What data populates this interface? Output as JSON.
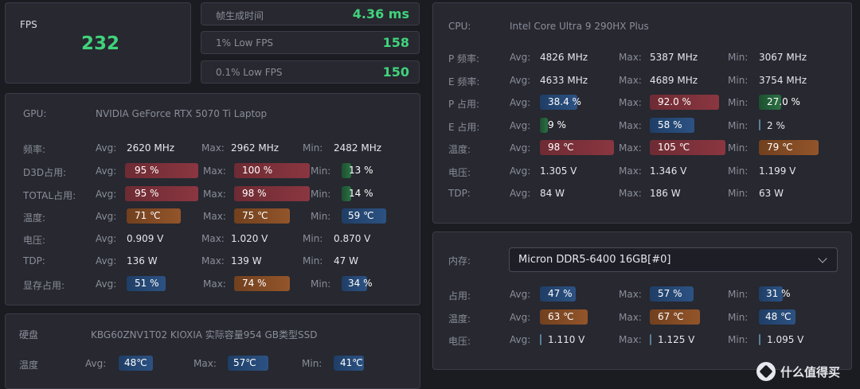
{
  "fps": {
    "label": "FPS",
    "value": "232"
  },
  "frame": [
    {
      "label": "帧生成时间",
      "value": "4.36 ms"
    },
    {
      "label": "1% Low FPS",
      "value": "158"
    },
    {
      "label": "0.1% Low FPS",
      "value": "150"
    }
  ],
  "gpu": {
    "label": "GPU:",
    "name": "NVIDIA GeForce RTX 5070 Ti Laptop",
    "headers": {
      "avg": "Avg:",
      "max": "Max:",
      "min": "Min:"
    },
    "rows": [
      {
        "label": "频率:",
        "avg": "2620 MHz",
        "max": "2962 MHz",
        "min": "2482 MHz"
      },
      {
        "label": "D3D占用:",
        "avg": "95 %",
        "max": "100 %",
        "min": "13 %"
      },
      {
        "label": "TOTAL占用:",
        "avg": "95 %",
        "max": "98 %",
        "min": "14 %"
      },
      {
        "label": "温度:",
        "avg": "71 ℃",
        "max": "75 ℃",
        "min": "59 ℃"
      },
      {
        "label": "电压:",
        "avg": "0.909 V",
        "max": "1.020 V",
        "min": "0.870 V"
      },
      {
        "label": "TDP:",
        "avg": "136 W",
        "max": "139 W",
        "min": "47 W"
      },
      {
        "label": "显存占用:",
        "avg": "51 %",
        "max": "74 %",
        "min": "34 %"
      }
    ]
  },
  "disk": {
    "label": "硬盘",
    "name": "KBG60ZNV1T02 KIOXIA 实际容量954 GB类型SSD",
    "row": {
      "label": "温度",
      "avg_label": "Avg:",
      "avg": "48℃",
      "max_label": "Max:",
      "max": "57℃",
      "min_label": "Min:",
      "min": "41℃"
    }
  },
  "cpu": {
    "label": "CPU:",
    "name": "Intel Core Ultra 9 290HX Plus",
    "headers": {
      "avg": "Avg:",
      "max": "Max:",
      "min": "Min:"
    },
    "rows": [
      {
        "label": "P 频率:",
        "avg": "4826 MHz",
        "max": "5387 MHz",
        "min": "3067 MHz"
      },
      {
        "label": "E 频率:",
        "avg": "4633 MHz",
        "max": "4689 MHz",
        "min": "3754 MHz"
      },
      {
        "label": "P 占用:",
        "avg": "38.4 %",
        "max": "92.0 %",
        "min": "27.0 %"
      },
      {
        "label": "E 占用:",
        "avg": "9 %",
        "max": "58 %",
        "min": "2 %"
      },
      {
        "label": "温度:",
        "avg": "98 ℃",
        "max": "105 ℃",
        "min": "79 ℃"
      },
      {
        "label": "电压:",
        "avg": "1.305 V",
        "max": "1.346 V",
        "min": "1.199 V"
      },
      {
        "label": "TDP:",
        "avg": "84 W",
        "max": "186 W",
        "min": "63 W"
      }
    ]
  },
  "memory": {
    "label": "内存:",
    "selected": "Micron DDR5-6400 16GB[#0]",
    "headers": {
      "avg": "Avg:",
      "max": "Max:",
      "min": "Min:"
    },
    "rows": [
      {
        "label": "占用:",
        "avg": "47 %",
        "max": "57 %",
        "min": "31 %"
      },
      {
        "label": "温度:",
        "avg": "63 ℃",
        "max": "67 ℃",
        "min": "48 ℃"
      },
      {
        "label": "电压:",
        "avg": "1.110 V",
        "max": "1.125 V",
        "min": "1.095 V"
      }
    ]
  },
  "watermark": {
    "text": "什么值得买",
    "icon": "zhi-logo-icon"
  }
}
